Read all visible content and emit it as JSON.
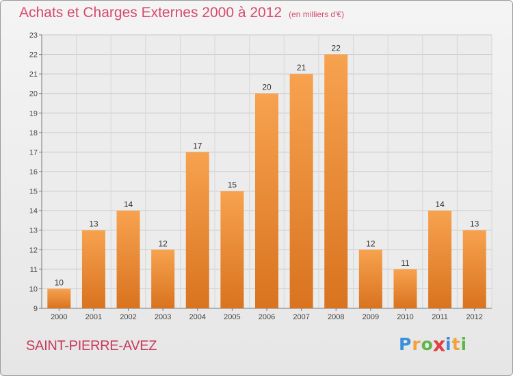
{
  "title": "Achats et Charges Externes 2000 à 2012",
  "subtitle": "(en milliers d'€)",
  "location": "SAINT-PIERRE-AVEZ",
  "logo": {
    "letters": [
      "P",
      "r",
      "o",
      "x",
      "i",
      "t",
      "i"
    ],
    "colors": [
      "#3a8fd8",
      "#f2a23a",
      "#5fb548",
      "#e04040",
      "#3a8fd8",
      "#f2a23a",
      "#5fb548"
    ]
  },
  "colors": {
    "bar_top": "#f7a24f",
    "bar_bottom": "#d9731f",
    "title": "#d64a6b"
  },
  "chart_data": {
    "type": "bar",
    "categories": [
      "2000",
      "2001",
      "2002",
      "2003",
      "2004",
      "2005",
      "2006",
      "2007",
      "2008",
      "2009",
      "2010",
      "2011",
      "2012"
    ],
    "values": [
      10,
      13,
      14,
      12,
      17,
      15,
      20,
      21,
      22,
      12,
      11,
      14,
      13
    ],
    "yticks": [
      9,
      10,
      11,
      12,
      13,
      14,
      15,
      16,
      17,
      18,
      19,
      20,
      21,
      22,
      23
    ],
    "ylim": [
      9,
      23
    ],
    "grid": true
  }
}
